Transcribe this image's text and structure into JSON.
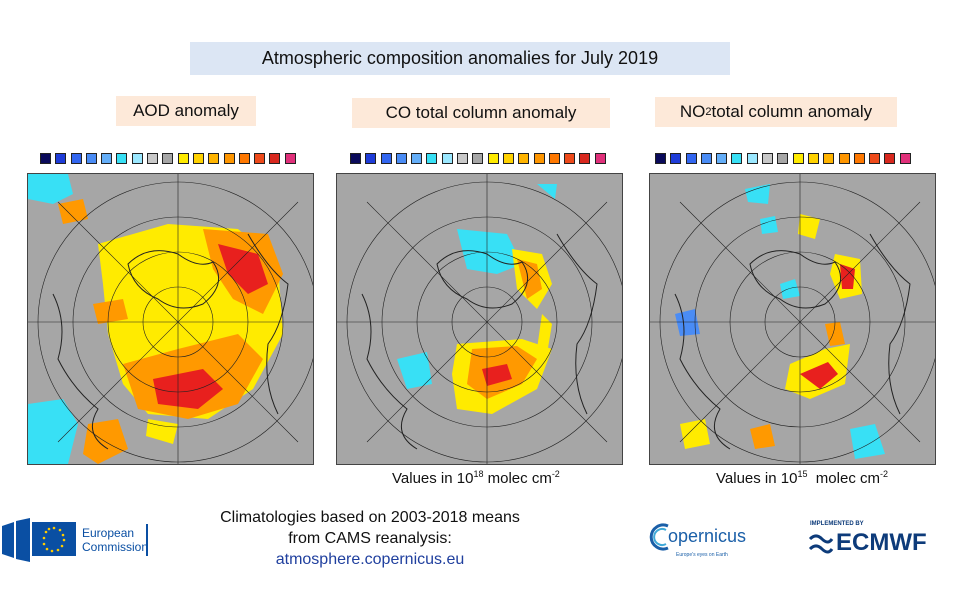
{
  "title": "Atmospheric composition anomalies for July 2019",
  "panels": [
    {
      "label": "AOD anomaly",
      "units": ""
    },
    {
      "label_pre": "CO total column anomaly",
      "units_pre": "Values in 10",
      "units_exp": "18",
      "units_post": " molec cm",
      "units_post_exp": "-2"
    },
    {
      "label_pre": "NO",
      "label_sub": "2",
      "label_post": " total column anomaly",
      "units_pre": "Values in 10",
      "units_exp": "15",
      "units_post": "  molec cm",
      "units_post_exp": "-2"
    }
  ],
  "climatology": {
    "line1": "Climatologies based on 2003-2018 means",
    "line2": "from CAMS reanalysis:",
    "link": "atmosphere.copernicus.eu"
  },
  "logos": {
    "eu_line1": "European",
    "eu_line2": "Commission",
    "copernicus_text": "opernicus",
    "copernicus_tagline": "Europe's eyes on Earth",
    "ecmwf_implemented": "IMPLEMENTED BY",
    "ecmwf_text": "ECMWF"
  },
  "colors": {
    "title_bg": "#dce6f4",
    "label_bg": "#fde9d9",
    "land_gray": "#a6a6a6",
    "cyan": "#38e0f5",
    "yellow": "#ffeb00",
    "orange": "#ff9900",
    "red": "#e8201e",
    "link": "#1f3f9e",
    "eu_blue": "#0a4fa3"
  },
  "colorbar_colors": [
    "#0a0a5a",
    "#1e3cd8",
    "#3266f0",
    "#4a8cf5",
    "#64aef8",
    "#38e0f5",
    "#9be8ff",
    "#c8c8c8",
    "#a6a6a6",
    "#ffeb00",
    "#ffd200",
    "#ffb400",
    "#ff9600",
    "#ff7800",
    "#ee4a1a",
    "#d8281e",
    "#e0307a"
  ]
}
